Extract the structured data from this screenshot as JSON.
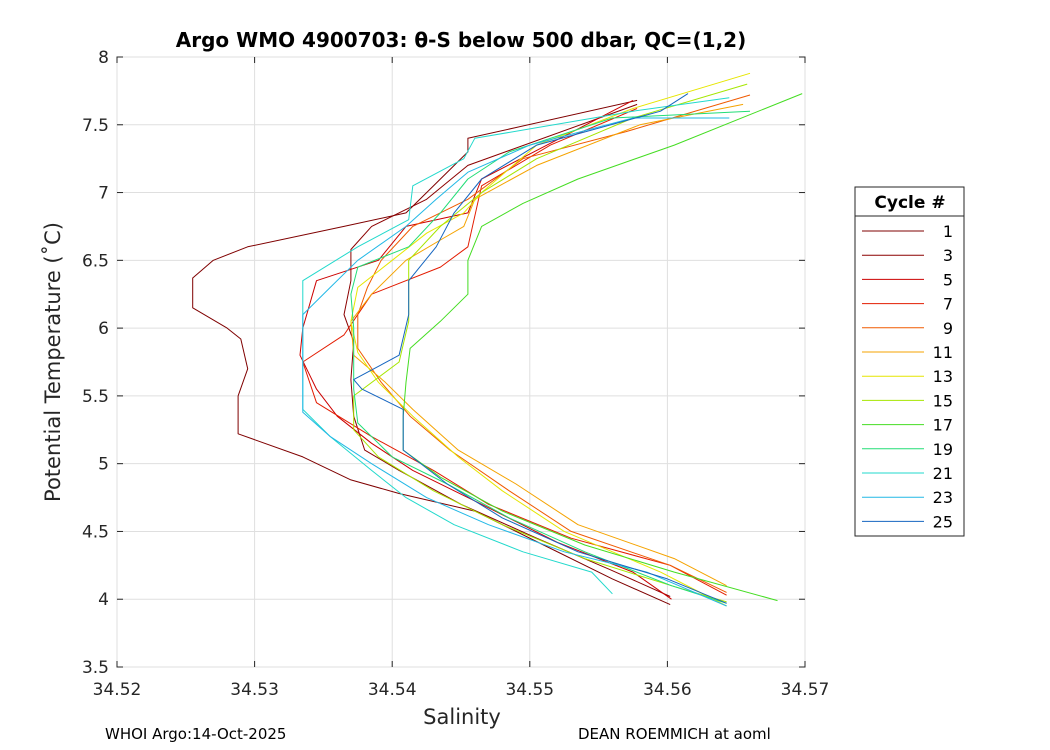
{
  "chart_data": {
    "type": "line",
    "title": "Argo WMO 4900703: θ-S below 500 dbar,  QC=(1,2)",
    "xlabel": "Salinity",
    "ylabel": "Potential Temperature (˚C)",
    "xlim": [
      34.52,
      34.57
    ],
    "ylim": [
      3.5,
      8
    ],
    "xticks": [
      34.52,
      34.53,
      34.54,
      34.55,
      34.56,
      34.57
    ],
    "xtick_labels": [
      "34.52",
      "34.53",
      "34.54",
      "34.55",
      "34.56",
      "34.57"
    ],
    "yticks": [
      3.5,
      4,
      4.5,
      5,
      5.5,
      6,
      6.5,
      7,
      7.5,
      8
    ],
    "ytick_labels": [
      "3.5",
      "4",
      "4.5",
      "5",
      "5.5",
      "6",
      "6.5",
      "7",
      "7.5",
      "8"
    ],
    "grid": true,
    "legend_title": "Cycle #",
    "legend_position": "outside-right",
    "series": [
      {
        "name": "1",
        "color": "#7f0000",
        "points": [
          [
            34.5578,
            7.68
          ],
          [
            34.5455,
            7.4
          ],
          [
            34.5455,
            7.3
          ],
          [
            34.5425,
            7.0
          ],
          [
            34.541,
            6.85
          ],
          [
            34.5365,
            6.75
          ],
          [
            34.5295,
            6.6
          ],
          [
            34.527,
            6.5
          ],
          [
            34.5255,
            6.37
          ],
          [
            34.5255,
            6.15
          ],
          [
            34.528,
            6.0
          ],
          [
            34.529,
            5.92
          ],
          [
            34.5295,
            5.7
          ],
          [
            34.5288,
            5.5
          ],
          [
            34.5288,
            5.22
          ],
          [
            34.5335,
            5.05
          ],
          [
            34.537,
            4.88
          ],
          [
            34.5405,
            4.78
          ],
          [
            34.546,
            4.65
          ],
          [
            34.551,
            4.4
          ],
          [
            34.556,
            4.15
          ],
          [
            34.5602,
            3.96
          ]
        ]
      },
      {
        "name": "3",
        "color": "#8b0000",
        "points": [
          [
            34.5578,
            7.65
          ],
          [
            34.5455,
            7.2
          ],
          [
            34.5425,
            6.95
          ],
          [
            34.5385,
            6.75
          ],
          [
            34.537,
            6.58
          ],
          [
            34.537,
            6.35
          ],
          [
            34.5365,
            6.1
          ],
          [
            34.5372,
            5.9
          ],
          [
            34.537,
            5.62
          ],
          [
            34.5372,
            5.35
          ],
          [
            34.538,
            5.1
          ],
          [
            34.5405,
            4.95
          ],
          [
            34.545,
            4.7
          ],
          [
            34.5505,
            4.45
          ],
          [
            34.5558,
            4.22
          ],
          [
            34.5602,
            4.02
          ]
        ]
      },
      {
        "name": "5",
        "color": "#cc0000",
        "points": [
          [
            34.5575,
            7.68
          ],
          [
            34.5465,
            7.1
          ],
          [
            34.5455,
            6.85
          ],
          [
            34.541,
            6.75
          ],
          [
            34.539,
            6.5
          ],
          [
            34.5345,
            6.35
          ],
          [
            34.5335,
            6.0
          ],
          [
            34.5333,
            5.8
          ],
          [
            34.5345,
            5.55
          ],
          [
            34.536,
            5.35
          ],
          [
            34.5385,
            5.15
          ],
          [
            34.5415,
            4.95
          ],
          [
            34.5465,
            4.7
          ],
          [
            34.552,
            4.42
          ],
          [
            34.5575,
            4.2
          ],
          [
            34.5603,
            4.0
          ]
        ]
      },
      {
        "name": "7",
        "color": "#e31b00",
        "points": [
          [
            34.5578,
            7.62
          ],
          [
            34.5515,
            7.35
          ],
          [
            34.5465,
            7.05
          ],
          [
            34.5455,
            6.6
          ],
          [
            34.5435,
            6.45
          ],
          [
            34.5385,
            6.25
          ],
          [
            34.5365,
            5.95
          ],
          [
            34.5335,
            5.75
          ],
          [
            34.5345,
            5.45
          ],
          [
            34.5385,
            5.2
          ],
          [
            34.543,
            4.95
          ],
          [
            34.547,
            4.7
          ],
          [
            34.553,
            4.45
          ],
          [
            34.5602,
            4.25
          ],
          [
            34.5643,
            4.03
          ]
        ]
      },
      {
        "name": "9",
        "color": "#f05a00",
        "points": [
          [
            34.566,
            7.72
          ],
          [
            34.557,
            7.45
          ],
          [
            34.5495,
            7.25
          ],
          [
            34.5455,
            6.95
          ],
          [
            34.5415,
            6.75
          ],
          [
            34.5392,
            6.5
          ],
          [
            34.5382,
            6.3
          ],
          [
            34.5375,
            6.1
          ],
          [
            34.5375,
            5.85
          ],
          [
            34.5392,
            5.6
          ],
          [
            34.5413,
            5.35
          ],
          [
            34.5442,
            5.1
          ],
          [
            34.5485,
            4.8
          ],
          [
            34.553,
            4.5
          ],
          [
            34.5602,
            4.25
          ],
          [
            34.5643,
            4.05
          ]
        ]
      },
      {
        "name": "11",
        "color": "#f5a300",
        "points": [
          [
            34.5655,
            7.65
          ],
          [
            34.558,
            7.5
          ],
          [
            34.5505,
            7.2
          ],
          [
            34.546,
            6.95
          ],
          [
            34.5452,
            6.75
          ],
          [
            34.5435,
            6.65
          ],
          [
            34.541,
            6.5
          ],
          [
            34.5385,
            6.25
          ],
          [
            34.537,
            6.05
          ],
          [
            34.5372,
            5.8
          ],
          [
            34.5395,
            5.6
          ],
          [
            34.5415,
            5.4
          ],
          [
            34.5448,
            5.1
          ],
          [
            34.549,
            4.85
          ],
          [
            34.5535,
            4.55
          ],
          [
            34.5605,
            4.3
          ],
          [
            34.5643,
            4.1
          ]
        ]
      },
      {
        "name": "13",
        "color": "#e6e600",
        "points": [
          [
            34.566,
            7.88
          ],
          [
            34.5575,
            7.62
          ],
          [
            34.5505,
            7.35
          ],
          [
            34.5465,
            7.0
          ],
          [
            34.5452,
            6.85
          ],
          [
            34.5425,
            6.7
          ],
          [
            34.54,
            6.5
          ],
          [
            34.5375,
            6.3
          ],
          [
            34.537,
            6.05
          ],
          [
            34.5375,
            5.82
          ],
          [
            34.539,
            5.6
          ],
          [
            34.5415,
            5.35
          ],
          [
            34.5448,
            5.05
          ],
          [
            34.548,
            4.8
          ],
          [
            34.5525,
            4.5
          ],
          [
            34.5595,
            4.2
          ],
          [
            34.5643,
            3.95
          ]
        ]
      },
      {
        "name": "15",
        "color": "#a6e600",
        "points": [
          [
            34.5658,
            7.8
          ],
          [
            34.5575,
            7.55
          ],
          [
            34.5505,
            7.25
          ],
          [
            34.5465,
            7.0
          ],
          [
            34.5435,
            6.75
          ],
          [
            34.5412,
            6.5
          ],
          [
            34.5412,
            6.25
          ],
          [
            34.5412,
            6.05
          ],
          [
            34.5405,
            5.75
          ],
          [
            34.5372,
            5.5
          ],
          [
            34.5372,
            5.25
          ],
          [
            34.539,
            5.05
          ],
          [
            34.543,
            4.8
          ],
          [
            34.548,
            4.55
          ],
          [
            34.554,
            4.3
          ],
          [
            34.5603,
            4.1
          ],
          [
            34.5643,
            3.98
          ]
        ]
      },
      {
        "name": "17",
        "color": "#44dd22",
        "points": [
          [
            34.5698,
            7.73
          ],
          [
            34.5605,
            7.35
          ],
          [
            34.5535,
            7.1
          ],
          [
            34.5495,
            6.92
          ],
          [
            34.5465,
            6.75
          ],
          [
            34.5455,
            6.5
          ],
          [
            34.5455,
            6.25
          ],
          [
            34.5435,
            6.05
          ],
          [
            34.5413,
            5.85
          ],
          [
            34.541,
            5.6
          ],
          [
            34.5408,
            5.35
          ],
          [
            34.5408,
            5.1
          ],
          [
            34.5435,
            4.9
          ],
          [
            34.548,
            4.65
          ],
          [
            34.554,
            4.4
          ],
          [
            34.5605,
            4.2
          ],
          [
            34.568,
            3.99
          ]
        ]
      },
      {
        "name": "19",
        "color": "#22dd77",
        "points": [
          [
            34.566,
            7.6
          ],
          [
            34.556,
            7.55
          ],
          [
            34.5485,
            7.3
          ],
          [
            34.5455,
            7.1
          ],
          [
            34.5435,
            6.85
          ],
          [
            34.5412,
            6.6
          ],
          [
            34.5375,
            6.45
          ],
          [
            34.537,
            6.25
          ],
          [
            34.5372,
            6.0
          ],
          [
            34.5372,
            5.8
          ],
          [
            34.5372,
            5.55
          ],
          [
            34.5375,
            5.3
          ],
          [
            34.54,
            5.05
          ],
          [
            34.544,
            4.85
          ],
          [
            34.5485,
            4.6
          ],
          [
            34.554,
            4.35
          ],
          [
            34.5603,
            4.1
          ],
          [
            34.5643,
            3.97
          ]
        ]
      },
      {
        "name": "21",
        "color": "#22d9cc",
        "points": [
          [
            34.5645,
            7.7
          ],
          [
            34.5575,
            7.6
          ],
          [
            34.546,
            7.4
          ],
          [
            34.5452,
            7.25
          ],
          [
            34.5415,
            7.05
          ],
          [
            34.5412,
            6.8
          ],
          [
            34.5375,
            6.6
          ],
          [
            34.5335,
            6.35
          ],
          [
            34.5335,
            6.05
          ],
          [
            34.5335,
            5.8
          ],
          [
            34.5335,
            5.55
          ],
          [
            34.5335,
            5.4
          ],
          [
            34.5355,
            5.2
          ],
          [
            34.5385,
            4.95
          ],
          [
            34.541,
            4.75
          ],
          [
            34.5445,
            4.55
          ],
          [
            34.5495,
            4.35
          ],
          [
            34.5545,
            4.2
          ],
          [
            34.556,
            4.04
          ]
        ]
      },
      {
        "name": "23",
        "color": "#22b8e6",
        "points": [
          [
            34.5645,
            7.55
          ],
          [
            34.5575,
            7.55
          ],
          [
            34.55,
            7.35
          ],
          [
            34.5455,
            7.15
          ],
          [
            34.5432,
            6.95
          ],
          [
            34.541,
            6.75
          ],
          [
            34.5375,
            6.5
          ],
          [
            34.5355,
            6.3
          ],
          [
            34.5335,
            6.1
          ],
          [
            34.5335,
            5.85
          ],
          [
            34.5335,
            5.6
          ],
          [
            34.5335,
            5.38
          ],
          [
            34.5355,
            5.2
          ],
          [
            34.5385,
            5.0
          ],
          [
            34.5425,
            4.75
          ],
          [
            34.547,
            4.55
          ],
          [
            34.5525,
            4.35
          ],
          [
            34.5585,
            4.2
          ],
          [
            34.5643,
            3.95
          ]
        ]
      },
      {
        "name": "25",
        "color": "#1565c0",
        "points": [
          [
            34.5615,
            7.73
          ],
          [
            34.5595,
            7.6
          ],
          [
            34.5505,
            7.35
          ],
          [
            34.5465,
            7.1
          ],
          [
            34.5445,
            6.85
          ],
          [
            34.5432,
            6.6
          ],
          [
            34.5412,
            6.35
          ],
          [
            34.5412,
            6.1
          ],
          [
            34.5405,
            5.8
          ],
          [
            34.5372,
            5.62
          ],
          [
            34.5378,
            5.55
          ],
          [
            34.5408,
            5.4
          ],
          [
            34.5408,
            5.1
          ],
          [
            34.544,
            4.85
          ],
          [
            34.548,
            4.6
          ],
          [
            34.5535,
            4.35
          ],
          [
            34.56,
            4.15
          ],
          [
            34.5643,
            3.97
          ]
        ]
      }
    ]
  },
  "footer": {
    "left": "WHOI Argo:14-Oct-2025",
    "right": "DEAN ROEMMICH at aoml"
  }
}
